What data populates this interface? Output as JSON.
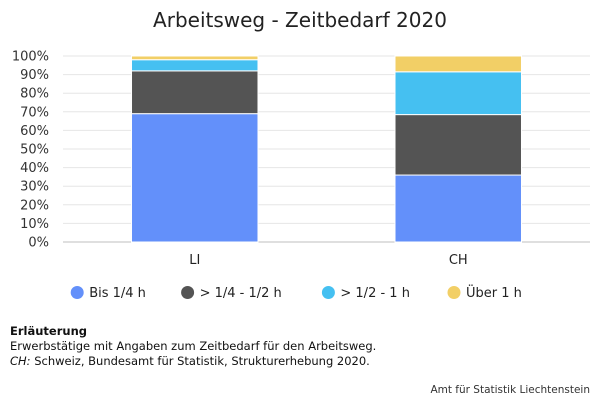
{
  "chart_data": {
    "type": "bar",
    "stacked": true,
    "title": "Arbeitsweg - Zeitbedarf 2020",
    "xlabel": "",
    "ylabel": "",
    "categories": [
      "LI",
      "CH"
    ],
    "ylim": [
      0,
      100
    ],
    "yticks": [
      "0%",
      "10%",
      "20%",
      "30%",
      "40%",
      "50%",
      "60%",
      "70%",
      "80%",
      "90%",
      "100%"
    ],
    "grid": true,
    "legend_position": "bottom",
    "series": [
      {
        "name": "Bis 1/4 h",
        "values": [
          69,
          36
        ],
        "color": "#6390fa"
      },
      {
        "name": "> 1/4 - 1/2 h",
        "values": [
          23,
          32.5
        ],
        "color": "#545454"
      },
      {
        "name": "> 1/2 - 1 h",
        "values": [
          6,
          23
        ],
        "color": "#45c0f1"
      },
      {
        "name": "Über 1 h",
        "values": [
          2,
          8.5
        ],
        "color": "#f2cf66"
      }
    ]
  },
  "notes": {
    "heading": "Erläuterung",
    "line1": "Erwerbstätige mit Angaben zum Zeitbedarf für den Arbeitsweg.",
    "abbr": "CH:",
    "line2": " Schweiz, Bundesamt für Statistik, Strukturerhebung 2020."
  },
  "source": "Amt für Statistik Liechtenstein"
}
